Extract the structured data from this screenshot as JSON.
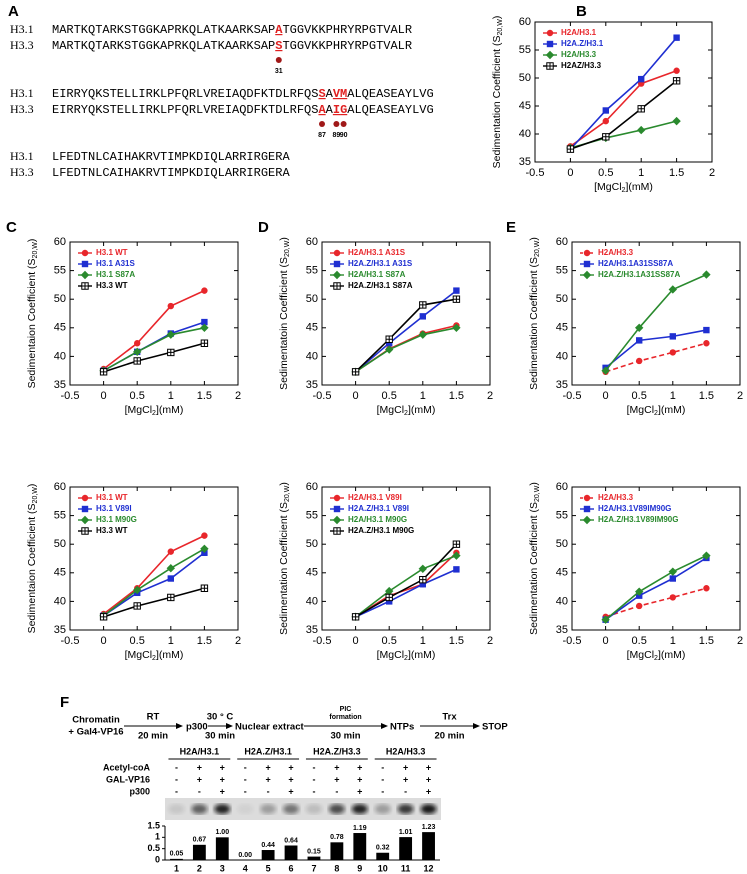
{
  "panel_labels": [
    "A",
    "B",
    "C",
    "D",
    "E",
    "F"
  ],
  "sequence_blocks": [
    {
      "rows": [
        {
          "name": "H3.1",
          "segments": [
            {
              "text": "MARTKQTARKSTGGKAPRKQLATKAARKSAP"
            },
            {
              "text": "A",
              "mark": true
            },
            {
              "text": "TGGVKKPHRYRPGTVALR"
            }
          ]
        },
        {
          "name": "H3.3",
          "segments": [
            {
              "text": "MARTKQTARKSTGGKAPRKQLATKAARKSAP"
            },
            {
              "text": "S",
              "mark": true,
              "site": "31"
            },
            {
              "text": "TGGVKKPHRYRPGTVALR"
            }
          ]
        }
      ]
    },
    {
      "rows": [
        {
          "name": "H3.1",
          "segments": [
            {
              "text": "EIRRYQKSTELLIRKLPFQRLVREIAQDFKTDLRFQS"
            },
            {
              "text": "S",
              "mark": true
            },
            {
              "text": "A"
            },
            {
              "text": "VM",
              "mark": true
            },
            {
              "text": "ALQEASEAYLVG"
            }
          ]
        },
        {
          "name": "H3.3",
          "segments": [
            {
              "text": "EIRRYQKSTELLIRKLPFQRLVREIAQDFKTDLRFQS"
            },
            {
              "text": "A",
              "mark": true,
              "site": "87"
            },
            {
              "text": "A"
            },
            {
              "text": "I",
              "mark": true,
              "site": "89"
            },
            {
              "text": "G",
              "mark": true,
              "site": "90"
            },
            {
              "text": "ALQEASEAYLVG"
            }
          ]
        }
      ]
    },
    {
      "rows": [
        {
          "name": "H3.1",
          "segments": [
            {
              "text": "LFEDTNLCAIHAKRVTIMPKDIQLARRIRGERA"
            }
          ]
        },
        {
          "name": "H3.3",
          "segments": [
            {
              "text": "LFEDTNLCAIHAKRVTIMPKDIQLARRIRGERA"
            }
          ]
        }
      ]
    }
  ],
  "chart_data": [
    {
      "type": "line",
      "ylabel": [
        "Sedimentation Coefficient (S",
        "20,W",
        ")"
      ],
      "xlabel": [
        "[MgCl",
        "2",
        "](mM)"
      ],
      "x": [
        0,
        0.5,
        1,
        1.5
      ],
      "xlim": [
        -0.5,
        2
      ],
      "xticks": [
        -0.5,
        0,
        0.5,
        1,
        1.5,
        2
      ],
      "ylim": [
        35,
        60
      ],
      "yticks": [
        35,
        40,
        45,
        50,
        55,
        60
      ],
      "legend": "upper left",
      "series": [
        {
          "name": "H2A/H3.1",
          "color": "#e8262b",
          "marker": "circle",
          "values": [
            37.8,
            42.3,
            49,
            51.3
          ]
        },
        {
          "name": "H2A.Z/H3.1",
          "color": "#1f2fd1",
          "marker": "square",
          "values": [
            37.3,
            44.2,
            49.8,
            57.2
          ]
        },
        {
          "name": "H2A/H3.3",
          "color": "#2a8a2e",
          "marker": "diamond",
          "values": [
            37.5,
            39.3,
            40.7,
            42.3
          ]
        },
        {
          "name": "H2AZ/H3.3",
          "color": "#000000",
          "marker": "open-square",
          "values": [
            37.3,
            39.5,
            44.5,
            49.5
          ]
        }
      ]
    },
    {
      "type": "line",
      "ylabel": [
        "Sedimentaion Coefficient (S",
        "20,W",
        ")"
      ],
      "xlabel": [
        "[MgCl",
        "2",
        "](mM)"
      ],
      "x": [
        0,
        0.5,
        1,
        1.5
      ],
      "xlim": [
        -0.5,
        2
      ],
      "xticks": [
        -0.5,
        0,
        0.5,
        1,
        1.5,
        2
      ],
      "ylim": [
        35,
        60
      ],
      "yticks": [
        35,
        40,
        45,
        50,
        55,
        60
      ],
      "legend": "upper left",
      "series": [
        {
          "name": "H3.1 WT",
          "color": "#e8262b",
          "marker": "circle",
          "values": [
            37.8,
            42.3,
            48.8,
            51.5
          ]
        },
        {
          "name": "H3.1 A31S",
          "color": "#1f2fd1",
          "marker": "square",
          "values": [
            37.5,
            40.8,
            44,
            46
          ]
        },
        {
          "name": "H3.1 S87A",
          "color": "#2a8a2e",
          "marker": "diamond",
          "values": [
            37.5,
            40.8,
            43.8,
            45
          ]
        },
        {
          "name": "H3.3 WT",
          "color": "#000000",
          "marker": "open-square",
          "values": [
            37.3,
            39.2,
            40.7,
            42.3
          ]
        }
      ]
    },
    {
      "type": "line",
      "ylabel": [
        "Sedimentaion Coefficient (S",
        "20,W",
        ")"
      ],
      "xlabel": [
        "[MgCl",
        "2",
        "](mM)"
      ],
      "x": [
        0,
        0.5,
        1,
        1.5
      ],
      "xlim": [
        -0.5,
        2
      ],
      "xticks": [
        -0.5,
        0,
        0.5,
        1,
        1.5,
        2
      ],
      "ylim": [
        35,
        60
      ],
      "yticks": [
        35,
        40,
        45,
        50,
        55,
        60
      ],
      "legend": "upper left",
      "series": [
        {
          "name": "H3.1 WT",
          "color": "#e8262b",
          "marker": "circle",
          "values": [
            37.8,
            42.3,
            48.7,
            51.5
          ]
        },
        {
          "name": "H3.1 V89I",
          "color": "#1f2fd1",
          "marker": "square",
          "values": [
            37.5,
            41.5,
            44,
            48.5
          ]
        },
        {
          "name": "H3.1 M90G",
          "color": "#2a8a2e",
          "marker": "diamond",
          "values": [
            37.5,
            42,
            45.8,
            49.2
          ]
        },
        {
          "name": "H3.3 WT",
          "color": "#000000",
          "marker": "open-square",
          "values": [
            37.3,
            39.2,
            40.7,
            42.3
          ]
        }
      ]
    },
    {
      "type": "line",
      "ylabel": [
        "Sedimentatoin Coefficient (S",
        "20,W",
        ")"
      ],
      "xlabel": [
        "[MgCl",
        "2",
        "](mM)"
      ],
      "x": [
        0,
        0.5,
        1,
        1.5
      ],
      "xlim": [
        -0.5,
        2
      ],
      "xticks": [
        -0.5,
        0,
        0.5,
        1,
        1.5,
        2
      ],
      "ylim": [
        35,
        60
      ],
      "yticks": [
        35,
        40,
        45,
        50,
        55,
        60
      ],
      "legend": "upper left",
      "series": [
        {
          "name": "H2A/H3.1 A31S",
          "color": "#e8262b",
          "marker": "circle",
          "values": [
            37.3,
            41.3,
            44,
            45.4
          ]
        },
        {
          "name": "H2A.Z/H3.1 A31S",
          "color": "#1f2fd1",
          "marker": "square",
          "values": [
            37.3,
            42.3,
            47,
            51.5
          ]
        },
        {
          "name": "H2A/H3.1 S87A",
          "color": "#2a8a2e",
          "marker": "diamond",
          "values": [
            37.3,
            41.2,
            43.8,
            45
          ]
        },
        {
          "name": "H2A.Z/H3.1 S87A",
          "color": "#000000",
          "marker": "open-square",
          "values": [
            37.3,
            43,
            49,
            50
          ]
        }
      ]
    },
    {
      "type": "line",
      "ylabel": [
        "Sedimentation Coefficient (S",
        "20,W",
        ")"
      ],
      "xlabel": [
        "[MgCl",
        "2",
        "](mM)"
      ],
      "x": [
        0,
        0.5,
        1,
        1.5
      ],
      "xlim": [
        -0.5,
        2
      ],
      "xticks": [
        -0.5,
        0,
        0.5,
        1,
        1.5,
        2
      ],
      "ylim": [
        35,
        60
      ],
      "yticks": [
        35,
        40,
        45,
        50,
        55,
        60
      ],
      "legend": "upper left",
      "series": [
        {
          "name": "H2A/H3.1 V89I",
          "color": "#e8262b",
          "marker": "circle",
          "values": [
            37.3,
            41,
            43,
            48.5
          ]
        },
        {
          "name": "H2A.Z/H3.1 V89I",
          "color": "#1f2fd1",
          "marker": "square",
          "values": [
            37.3,
            40,
            43,
            45.6
          ]
        },
        {
          "name": "H2A/H3.1 M90G",
          "color": "#2a8a2e",
          "marker": "diamond",
          "values": [
            37.3,
            41.8,
            45.7,
            48
          ]
        },
        {
          "name": "H2A.Z/H3.1 M90G",
          "color": "#000000",
          "marker": "open-square",
          "values": [
            37.3,
            40.7,
            43.8,
            50
          ]
        }
      ]
    },
    {
      "type": "line",
      "ylabel": [
        "Sedimentation Coefficient (S",
        "20,W",
        ")"
      ],
      "xlabel": [
        "[MgCl",
        "2",
        "](mM)"
      ],
      "x": [
        0,
        0.5,
        1,
        1.5
      ],
      "xlim": [
        -0.5,
        2
      ],
      "xticks": [
        -0.5,
        0,
        0.5,
        1,
        1.5,
        2
      ],
      "ylim": [
        35,
        60
      ],
      "yticks": [
        35,
        40,
        45,
        50,
        55,
        60
      ],
      "legend": "upper left",
      "series": [
        {
          "name": "H2A/H3.3",
          "color": "#e8262b",
          "marker": "circle",
          "dashed": true,
          "values": [
            37.3,
            39.2,
            40.7,
            42.3
          ]
        },
        {
          "name": "H2A/H3.1A31SS87A",
          "color": "#1f2fd1",
          "marker": "square",
          "values": [
            38,
            42.8,
            43.5,
            44.6
          ]
        },
        {
          "name": "H2A.Z/H3.1A31SS87A",
          "color": "#2a8a2e",
          "marker": "diamond",
          "values": [
            37.5,
            45,
            51.7,
            54.3
          ]
        }
      ]
    },
    {
      "type": "line",
      "ylabel": [
        "Sedimentation Coefficient (S",
        "20,W",
        ")"
      ],
      "xlabel": [
        "[MgCl",
        "2",
        "](mM)"
      ],
      "x": [
        0,
        0.5,
        1,
        1.5
      ],
      "xlim": [
        -0.5,
        2
      ],
      "xticks": [
        -0.5,
        0,
        0.5,
        1,
        1.5,
        2
      ],
      "ylim": [
        35,
        60
      ],
      "yticks": [
        35,
        40,
        45,
        50,
        55,
        60
      ],
      "legend": "upper left",
      "series": [
        {
          "name": "H2A/H3.3",
          "color": "#e8262b",
          "marker": "circle",
          "dashed": true,
          "values": [
            37.3,
            39.2,
            40.7,
            42.3
          ]
        },
        {
          "name": "H2A/H3.1V89IM90G",
          "color": "#1f2fd1",
          "marker": "square",
          "values": [
            36.8,
            41,
            44,
            47.6
          ]
        },
        {
          "name": "H2A.Z/H3.1V89IM90G",
          "color": "#2a8a2e",
          "marker": "diamond",
          "values": [
            36.8,
            41.7,
            45.2,
            48
          ]
        }
      ]
    },
    {
      "type": "bar",
      "categories": [
        "1",
        "2",
        "3",
        "4",
        "5",
        "6",
        "7",
        "8",
        "9",
        "10",
        "11",
        "12"
      ],
      "values": [
        0.05,
        0.67,
        1.0,
        0.0,
        0.44,
        0.64,
        0.15,
        0.78,
        1.19,
        0.32,
        1.01,
        1.23
      ],
      "value_labels": [
        "0.05",
        "0.67",
        "1.00",
        "0.00",
        "0.44",
        "0.64",
        "0.15",
        "0.78",
        "1.19",
        "0.32",
        "1.01",
        "1.23"
      ],
      "color": "#000000",
      "ylim": [
        0,
        1.5
      ],
      "yticks": [
        0,
        0.5,
        1,
        1.5
      ]
    }
  ],
  "scheme": {
    "start": [
      "Chromatin",
      "+ Gal4-VP16"
    ],
    "steps": [
      {
        "above": [
          "RT"
        ],
        "below": "20 min"
      },
      {
        "above": [
          "30 ° C"
        ],
        "below": "30 min"
      },
      {
        "above": [
          "PIC",
          "formation"
        ],
        "below": "30 min"
      },
      {
        "above": [
          "Trx"
        ],
        "below": "20 min"
      }
    ],
    "stages": [
      "p300",
      "Nuclear extract",
      "NTPs",
      "STOP"
    ]
  },
  "gel": {
    "groups": [
      "H2A/H3.1",
      "H2A.Z/H3.1",
      "H2A.Z/H3.3",
      "H2A/H3.3"
    ],
    "rows": [
      {
        "label": "Acetyl-coA",
        "signs": [
          "-",
          "+",
          "+",
          "-",
          "+",
          "+",
          "-",
          "+",
          "+",
          "-",
          "+",
          "+"
        ]
      },
      {
        "label": "GAL-VP16",
        "signs": [
          "-",
          "+",
          "+",
          "-",
          "+",
          "+",
          "-",
          "+",
          "+",
          "-",
          "+",
          "+"
        ]
      },
      {
        "label": "p300",
        "signs": [
          "-",
          "-",
          "+",
          "-",
          "-",
          "+",
          "-",
          "-",
          "+",
          "-",
          "-",
          "+"
        ]
      }
    ]
  }
}
